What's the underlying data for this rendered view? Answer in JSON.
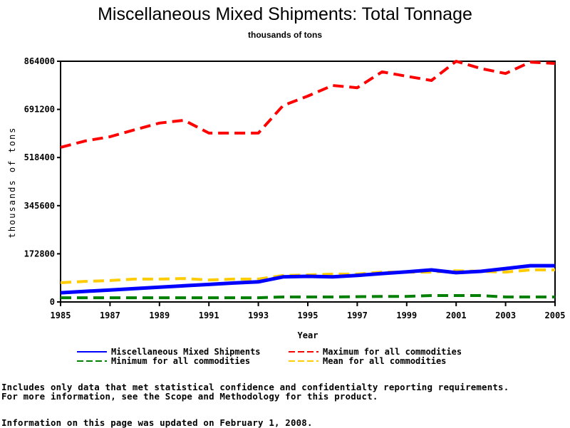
{
  "chart_data": {
    "type": "line",
    "title": "Miscellaneous Mixed Shipments: Total Tonnage",
    "subtitle": "thousands of tons",
    "xlabel": "Year",
    "ylabel": "thousands of tons",
    "xlim": [
      1985,
      2005
    ],
    "ylim": [
      0,
      864000
    ],
    "x_ticks": [
      "1985",
      "1987",
      "1989",
      "1991",
      "1993",
      "1995",
      "1997",
      "1999",
      "2001",
      "2003",
      "2005"
    ],
    "y_ticks": [
      "0",
      "172800",
      "345600",
      "518400",
      "691200",
      "864000"
    ],
    "x": [
      1985,
      1986,
      1987,
      1988,
      1989,
      1990,
      1991,
      1992,
      1993,
      1994,
      1995,
      1996,
      1997,
      1998,
      1999,
      2000,
      2001,
      2002,
      2003,
      2004,
      2005
    ],
    "series": [
      {
        "name": "Miscellaneous Mixed Shipments",
        "color": "#0000ff",
        "style": "solid",
        "values": [
          33000,
          38000,
          43000,
          48000,
          53000,
          58000,
          63000,
          68000,
          72000,
          90000,
          92000,
          90000,
          95000,
          102000,
          108000,
          115000,
          105000,
          110000,
          120000,
          130000,
          130000
        ]
      },
      {
        "name": "Maximum for all commodities",
        "color": "#ff0000",
        "style": "dashed",
        "values": [
          555000,
          578000,
          593000,
          618000,
          642000,
          652000,
          606000,
          606000,
          606000,
          705000,
          739000,
          777000,
          769000,
          826000,
          810000,
          795000,
          864000,
          838000,
          820000,
          861000,
          856000
        ]
      },
      {
        "name": "Minimum for all commodities",
        "color": "#008000",
        "style": "dashed",
        "values": [
          15000,
          15000,
          15000,
          15000,
          15000,
          15000,
          15000,
          15000,
          15000,
          18000,
          18000,
          18000,
          19000,
          20000,
          20000,
          23000,
          23000,
          23000,
          18000,
          18000,
          18000
        ]
      },
      {
        "name": "Mean for all commodities",
        "color": "#ffcc00",
        "style": "dashed",
        "values": [
          69000,
          74000,
          77000,
          82000,
          82000,
          84000,
          79000,
          82000,
          82000,
          95000,
          97000,
          100000,
          100000,
          107000,
          107000,
          107000,
          112000,
          110000,
          107000,
          115000,
          115000
        ]
      }
    ],
    "grid": false,
    "legend_position": "bottom"
  },
  "notes": {
    "line1": "Includes only data that met statistical confidence and confidentialty reporting requirements.",
    "line2": "For more information, see the Scope and Methodology for this product.",
    "updated": "Information on this page was updated on February 1, 2008."
  }
}
